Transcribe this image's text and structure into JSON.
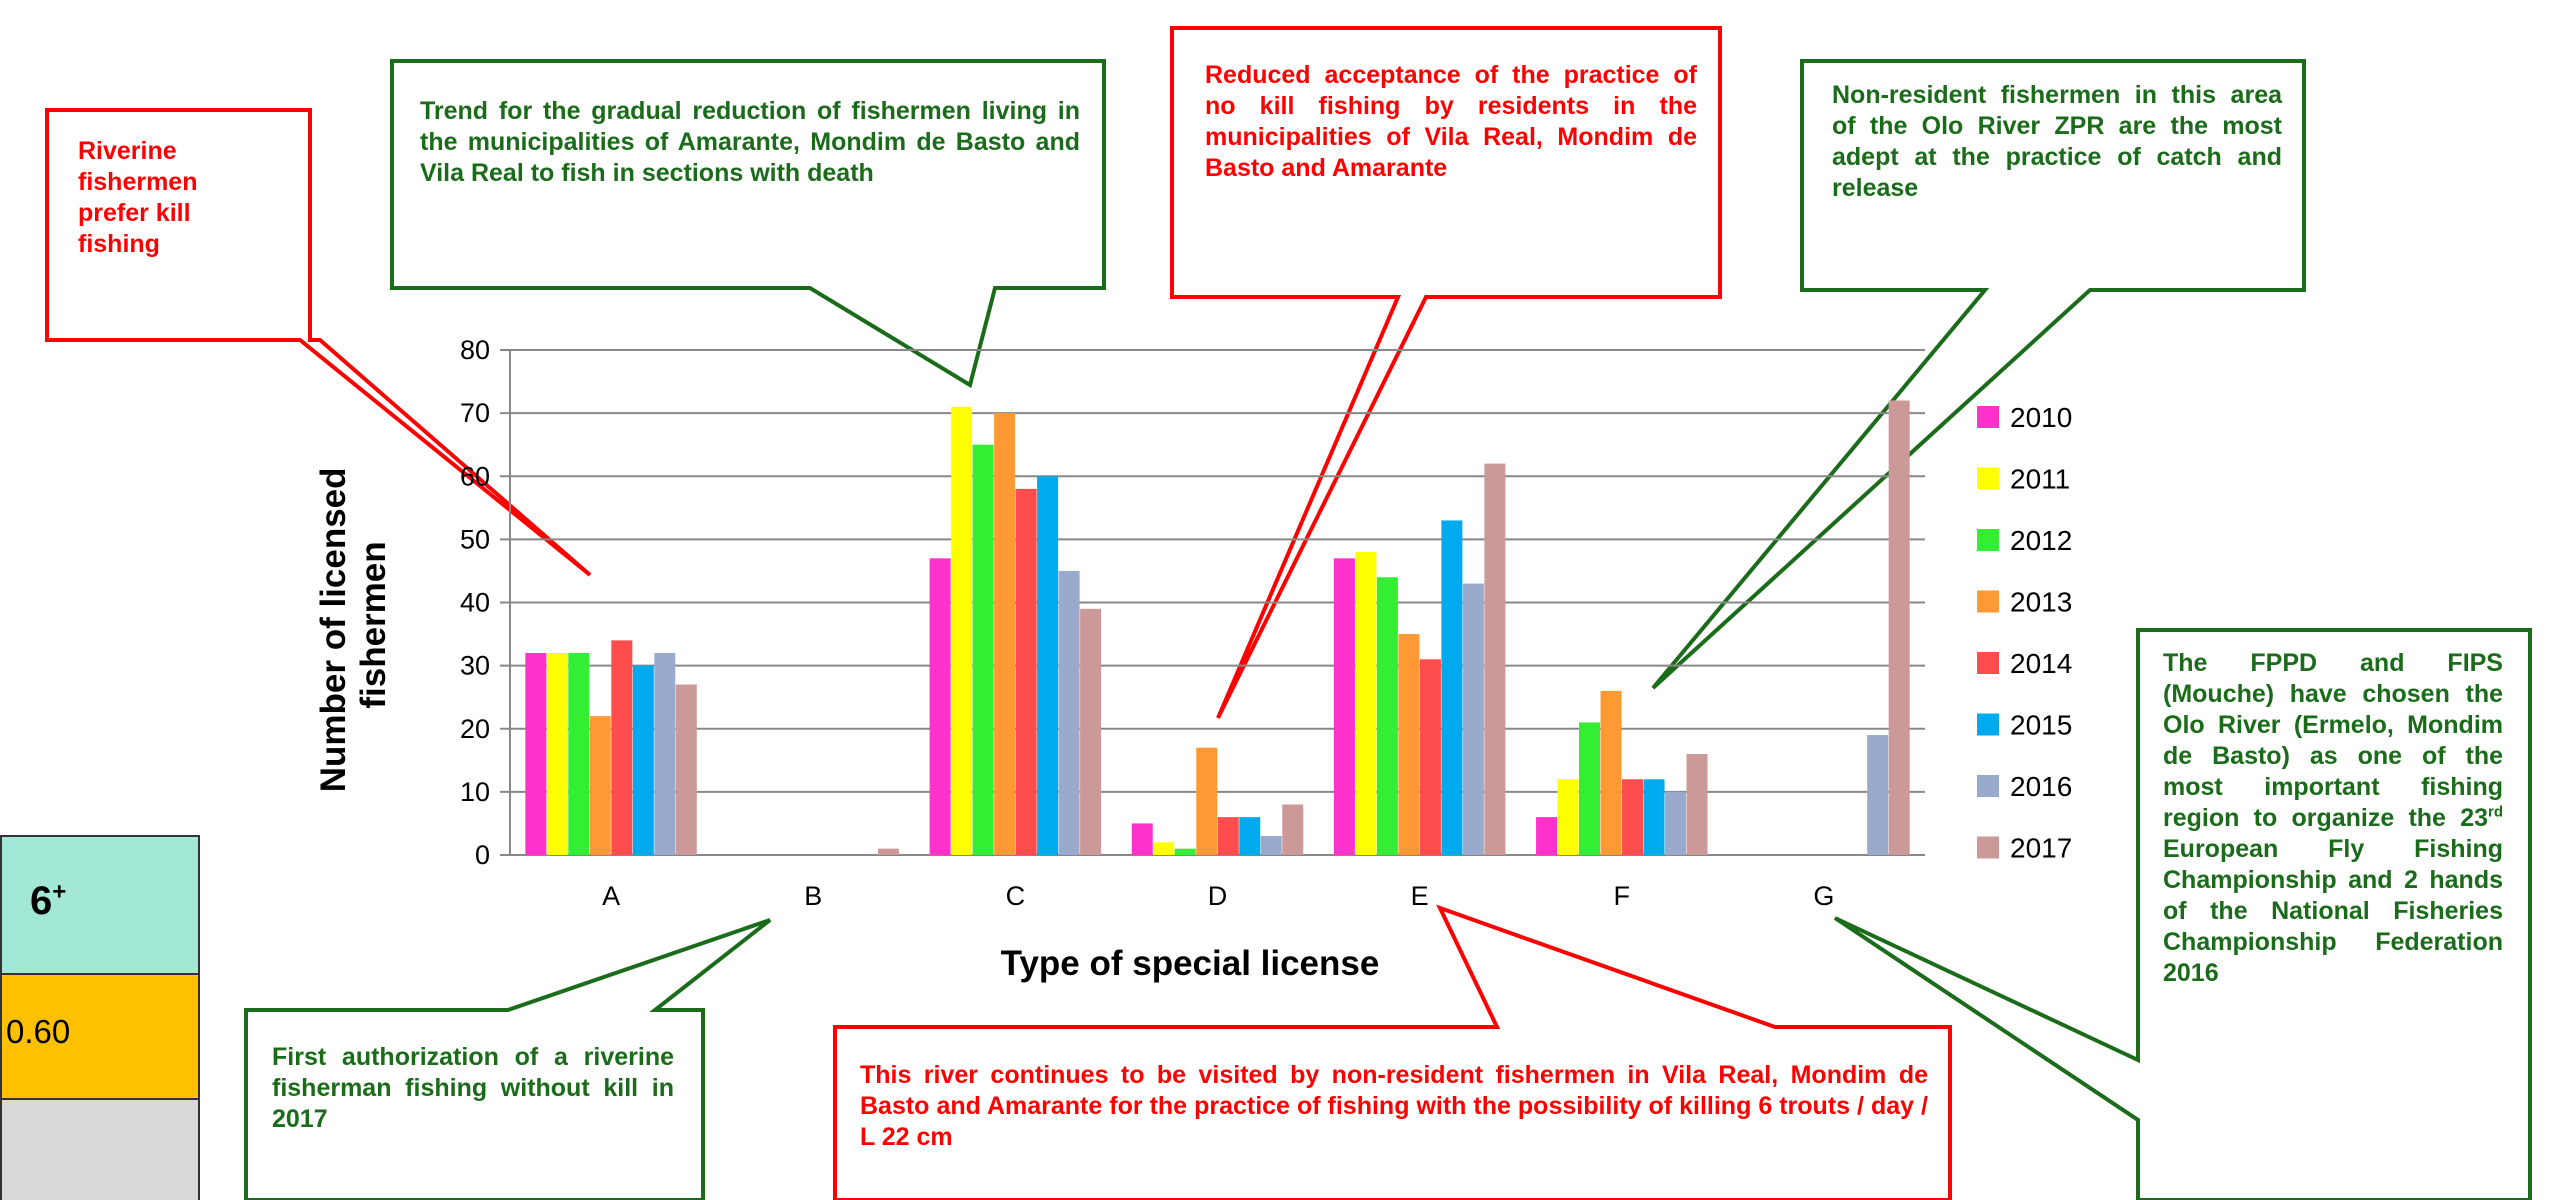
{
  "chart_data": {
    "type": "bar",
    "categories": [
      "A",
      "B",
      "C",
      "D",
      "E",
      "F",
      "G"
    ],
    "series": [
      {
        "name": "2010",
        "color": "#ff33cc",
        "values": [
          32,
          0,
          47,
          5,
          47,
          6,
          0
        ]
      },
      {
        "name": "2011",
        "color": "#ffff00",
        "values": [
          32,
          0,
          71,
          2,
          48,
          12,
          0
        ]
      },
      {
        "name": "2012",
        "color": "#33ee33",
        "values": [
          32,
          0,
          65,
          1,
          44,
          21,
          0
        ]
      },
      {
        "name": "2013",
        "color": "#ff9933",
        "values": [
          22,
          0,
          70,
          17,
          35,
          26,
          0
        ]
      },
      {
        "name": "2014",
        "color": "#ff4d4d",
        "values": [
          34,
          0,
          58,
          6,
          31,
          12,
          0
        ]
      },
      {
        "name": "2015",
        "color": "#00aaee",
        "values": [
          30,
          0,
          60,
          6,
          53,
          12,
          0
        ]
      },
      {
        "name": "2016",
        "color": "#99aacc",
        "values": [
          32,
          0,
          45,
          3,
          43,
          10,
          19
        ]
      },
      {
        "name": "2017",
        "color": "#cc9999",
        "values": [
          27,
          1,
          39,
          8,
          62,
          16,
          72
        ]
      }
    ],
    "xlabel": "Type of special license",
    "ylabel": "Number of licensed fishermen",
    "ylim": [
      0,
      80
    ],
    "yticks": [
      0,
      10,
      20,
      30,
      40,
      50,
      60,
      70,
      80
    ],
    "grid": true,
    "legend": "right"
  },
  "callouts": {
    "riverine": "Riverine fishermen prefer kill fishing",
    "trend": "Trend for the gradual reduction of fishermen living in the municipalities of Amarante, Mondim de Basto and Vila Real to fish in sections with death",
    "reduced": "Reduced acceptance of the practice of no kill fishing by residents in the municipalities of Vila Real, Mondim de Basto and Amarante",
    "nonresident": "Non-resident fishermen in this area of the Olo River ZPR are the most adept at the practice of catch and release",
    "fppd_1": "The FPPD and FIPS (Mouche) have chosen the Olo River (Ermelo, Mondim de Basto) as one of the most important fishing region to organize the 23",
    "fppd_sup": "rd",
    "fppd_2": " European Fly Fishing Championship and 2 hands of the National Fisheries Championship Federation 2016",
    "first_1": "First authorization of a riverine fisherman fishing without kill in 2017",
    "continues": "This river continues to be visited by non-resident fishermen in Vila Real, Mondim de Basto and Amarante for the practice of fishing with the possibility of killing 6 trouts / day / L 22 cm"
  },
  "table_fragment": {
    "header": "6",
    "header_sup": "+",
    "value": "0.60",
    "colors": {
      "header": "#a3e8d6",
      "value": "#ffc000",
      "empty": "#d9d9d9"
    }
  },
  "colors": {
    "red": "#ff0000",
    "green": "#1a6b1a"
  }
}
